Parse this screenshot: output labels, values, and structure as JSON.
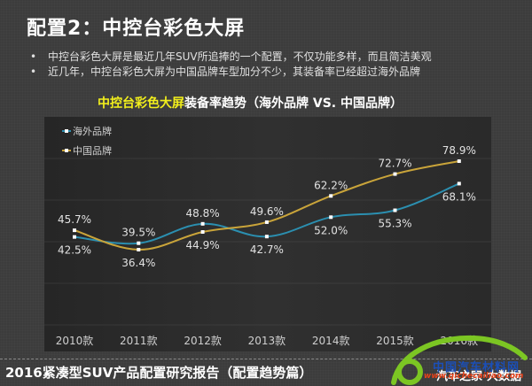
{
  "slide": {
    "title": "配置2：中控台彩色大屏",
    "bullets": [
      "中控台彩色大屏是最近几年SUV所追捧的一个配置，不仅功能多样，而且简洁美观",
      "近几年，中控台彩色大屏为中国品牌车型加分不少，其装备率已经超过海外品牌"
    ],
    "bullet_symbol": "•",
    "footer": "2016紧凑型SUV产品配置研究报告（配置趋势篇）",
    "footer_right": "汽车之家·大数据",
    "watermark": {
      "title": "中国汽车材料网",
      "url": "www.qichecailiao.com"
    }
  },
  "colors": {
    "overseas": "#2b8fb0",
    "china": "#c9a43a",
    "highlight_title": "#f2ef1c"
  },
  "chart_data": {
    "type": "line",
    "title_highlight": "中控台彩色大屏",
    "title_rest": "装备率趋势（海外品牌 VS. 中国品牌）",
    "title": "中控台彩色大屏装备率趋势（海外品牌 VS. 中国品牌）",
    "xlabel": "",
    "ylabel": "",
    "categories": [
      "2010款",
      "2011款",
      "2012款",
      "2013款",
      "2014款",
      "2015款",
      "2016款"
    ],
    "series": [
      {
        "name": "海外品牌",
        "values": [
          42.5,
          39.5,
          48.8,
          42.7,
          52.0,
          55.3,
          68.1
        ],
        "labels": [
          "42.5%",
          "39.5%",
          "48.8%",
          "42.7%",
          "52.0%",
          "55.3%",
          "68.1%"
        ]
      },
      {
        "name": "中国品牌",
        "values": [
          45.7,
          36.4,
          44.9,
          49.6,
          62.2,
          72.7,
          78.9
        ],
        "labels": [
          "45.7%",
          "36.4%",
          "44.9%",
          "49.6%",
          "62.2%",
          "72.7%",
          "78.9%"
        ]
      }
    ],
    "legend_position": "top-left",
    "grid": true,
    "smooth": true,
    "y_axis_visible": false
  }
}
